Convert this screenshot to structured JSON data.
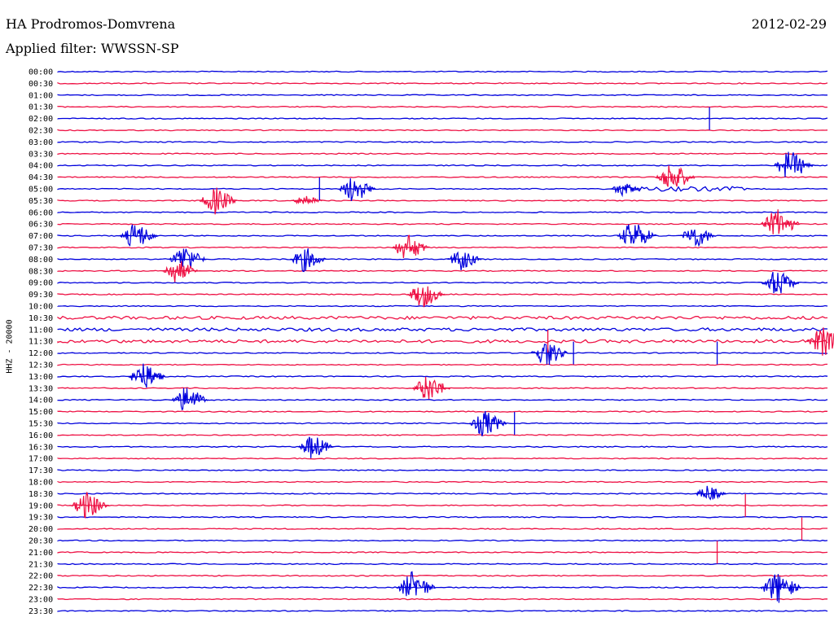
{
  "header": {
    "station": "HA Prodromos-Domvrena",
    "date": "2012-02-29",
    "filter": "Applied filter: WWSSN-SP"
  },
  "colors": {
    "even_rows": "#0000dd",
    "odd_rows": "#ee1144"
  },
  "chart_data": {
    "type": "line",
    "title": "HA Prodromos-Domvrena",
    "ylabel": "HHZ - 20000",
    "row_labels": [
      "00:00",
      "00:30",
      "01:00",
      "01:30",
      "02:00",
      "02:30",
      "03:00",
      "03:30",
      "04:00",
      "04:30",
      "05:00",
      "05:30",
      "06:00",
      "06:30",
      "07:00",
      "07:30",
      "08:00",
      "08:30",
      "09:00",
      "09:30",
      "10:00",
      "10:30",
      "11:00",
      "11:30",
      "12:00",
      "12:30",
      "13:00",
      "13:30",
      "14:00",
      "15:00",
      "15:30",
      "16:00",
      "16:30",
      "17:00",
      "17:30",
      "18:00",
      "18:30",
      "19:00",
      "19:30",
      "20:00",
      "20:30",
      "21:00",
      "21:30",
      "22:00",
      "22:30",
      "23:00",
      "23:30"
    ],
    "row_minutes": 30,
    "events": [
      {
        "row": "04:00",
        "minute": 28.5,
        "amplitude": 1.1
      },
      {
        "row": "04:30",
        "minute": 23.9,
        "amplitude": 1.1
      },
      {
        "row": "05:00",
        "minute": 11.5,
        "amplitude": 1.0
      },
      {
        "row": "05:00",
        "minute": 22.0,
        "amplitude": 0.5
      },
      {
        "row": "05:30",
        "minute": 6.1,
        "amplitude": 1.0
      },
      {
        "row": "05:30",
        "minute": 9.6,
        "amplitude": 0.5
      },
      {
        "row": "06:30",
        "minute": 28.0,
        "amplitude": 1.1
      },
      {
        "row": "07:00",
        "minute": 3.0,
        "amplitude": 1.0
      },
      {
        "row": "07:00",
        "minute": 22.4,
        "amplitude": 1.1
      },
      {
        "row": "07:00",
        "minute": 24.8,
        "amplitude": 0.9
      },
      {
        "row": "07:30",
        "minute": 13.6,
        "amplitude": 1.0
      },
      {
        "row": "08:00",
        "minute": 4.9,
        "amplitude": 1.0
      },
      {
        "row": "08:00",
        "minute": 9.6,
        "amplitude": 0.9
      },
      {
        "row": "08:00",
        "minute": 15.7,
        "amplitude": 0.8
      },
      {
        "row": "08:30",
        "minute": 4.6,
        "amplitude": 0.9
      },
      {
        "row": "09:00",
        "minute": 28.0,
        "amplitude": 1.0
      },
      {
        "row": "09:30",
        "minute": 14.2,
        "amplitude": 1.0
      },
      {
        "row": "11:30",
        "minute": 29.8,
        "amplitude": 1.1
      },
      {
        "row": "12:00",
        "minute": 19.0,
        "amplitude": 1.0
      },
      {
        "row": "13:00",
        "minute": 3.3,
        "amplitude": 1.0
      },
      {
        "row": "13:30",
        "minute": 14.4,
        "amplitude": 1.0
      },
      {
        "row": "14:00",
        "minute": 5.0,
        "amplitude": 1.0
      },
      {
        "row": "15:30",
        "minute": 16.6,
        "amplitude": 1.0
      },
      {
        "row": "16:30",
        "minute": 9.9,
        "amplitude": 0.9
      },
      {
        "row": "18:30",
        "minute": 25.3,
        "amplitude": 0.6
      },
      {
        "row": "19:00",
        "minute": 1.1,
        "amplitude": 1.0
      },
      {
        "row": "22:30",
        "minute": 13.8,
        "amplitude": 1.1
      },
      {
        "row": "22:30",
        "minute": 28.0,
        "amplitude": 1.2
      }
    ],
    "spikes": [
      {
        "row": "02:00",
        "minute": 25.4
      },
      {
        "row": "05:00",
        "minute": 10.2
      },
      {
        "row": "11:30",
        "minute": 19.1
      },
      {
        "row": "12:00",
        "minute": 20.1
      },
      {
        "row": "12:00",
        "minute": 25.7
      },
      {
        "row": "15:30",
        "minute": 17.8
      },
      {
        "row": "19:00",
        "minute": 26.8
      },
      {
        "row": "20:00",
        "minute": 29.0
      },
      {
        "row": "21:00",
        "minute": 25.7
      }
    ],
    "noisy_rows": [
      {
        "row": "05:00",
        "start": 22.0,
        "end": 26.8,
        "amplitude": 0.45
      },
      {
        "row": "10:30",
        "start": 0,
        "end": 30,
        "amplitude": 0.3
      },
      {
        "row": "11:00",
        "start": 0,
        "end": 30,
        "amplitude": 0.3
      },
      {
        "row": "11:30",
        "start": 0,
        "end": 30,
        "amplitude": 0.3
      }
    ]
  }
}
